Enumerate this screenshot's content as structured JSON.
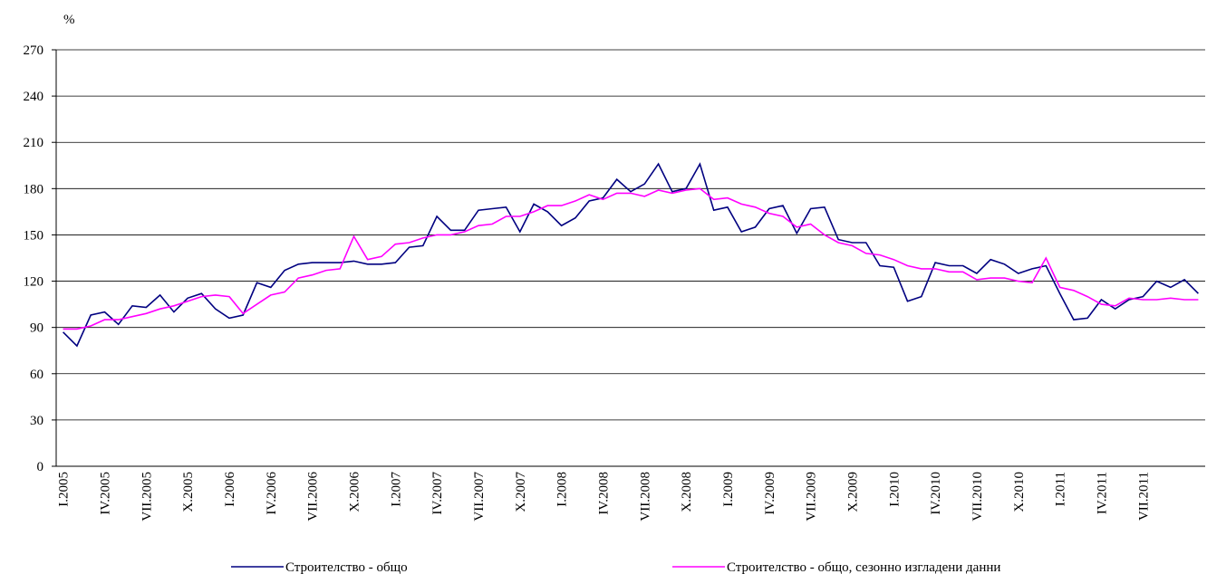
{
  "chart_data": {
    "type": "line",
    "y_unit_label": "%",
    "categories": [
      "I.2005",
      null,
      null,
      "IV.2005",
      null,
      null,
      "VII.2005",
      null,
      null,
      "X.2005",
      null,
      null,
      "I.2006",
      null,
      null,
      "IV.2006",
      null,
      null,
      "VII.2006",
      null,
      null,
      "X.2006",
      null,
      null,
      "I.2007",
      null,
      null,
      "IV.2007",
      null,
      null,
      "VII.2007",
      null,
      null,
      "X.2007",
      null,
      null,
      "I.2008",
      null,
      null,
      "IV.2008",
      null,
      null,
      "VII.2008",
      null,
      null,
      "X.2008",
      null,
      null,
      "I.2009",
      null,
      null,
      "IV.2009",
      null,
      null,
      "VII.2009",
      null,
      null,
      "X.2009",
      null,
      null,
      "I.2010",
      null,
      null,
      "IV.2010",
      null,
      null,
      "VII.2010",
      null,
      null,
      "X.2010",
      null,
      null,
      "I.2011",
      null,
      null,
      "IV.2011",
      null,
      null,
      "VII.2011",
      null,
      null,
      null,
      null
    ],
    "series": [
      {
        "name": "Строителство - общо",
        "color": "#000080",
        "values": [
          87,
          78,
          98,
          100,
          92,
          104,
          103,
          111,
          100,
          109,
          112,
          102,
          96,
          98,
          119,
          116,
          127,
          131,
          132,
          132,
          132,
          133,
          131,
          131,
          132,
          142,
          143,
          162,
          153,
          153,
          166,
          167,
          168,
          152,
          170,
          165,
          156,
          161,
          172,
          174,
          186,
          178,
          183,
          196,
          178,
          180,
          196,
          166,
          168,
          152,
          155,
          167,
          169,
          151,
          167,
          168,
          147,
          145,
          145,
          130,
          129,
          107,
          110,
          132,
          130,
          130,
          125,
          134,
          131,
          125,
          128,
          130,
          112,
          95,
          96,
          108,
          102,
          108,
          110,
          120,
          116,
          121,
          112
        ]
      },
      {
        "name": "Строителство - общо, сезонно изгладени данни",
        "color": "#ff00ff",
        "values": [
          89,
          89,
          91,
          95,
          95,
          97,
          99,
          102,
          104,
          107,
          110,
          111,
          110,
          99,
          105,
          111,
          113,
          122,
          124,
          127,
          128,
          149,
          134,
          136,
          144,
          145,
          148,
          150,
          150,
          152,
          156,
          157,
          162,
          162,
          165,
          169,
          169,
          172,
          176,
          173,
          177,
          177,
          175,
          179,
          177,
          179,
          180,
          173,
          174,
          170,
          168,
          164,
          162,
          155,
          157,
          150,
          145,
          143,
          138,
          137,
          134,
          130,
          128,
          128,
          126,
          126,
          121,
          122,
          122,
          120,
          119,
          135,
          116,
          114,
          110,
          105,
          104,
          109,
          108,
          108,
          109,
          108,
          108
        ]
      }
    ],
    "ylim": [
      0,
      270
    ],
    "yticks": [
      0,
      30,
      60,
      90,
      120,
      150,
      180,
      210,
      240,
      270
    ],
    "grid": true
  }
}
